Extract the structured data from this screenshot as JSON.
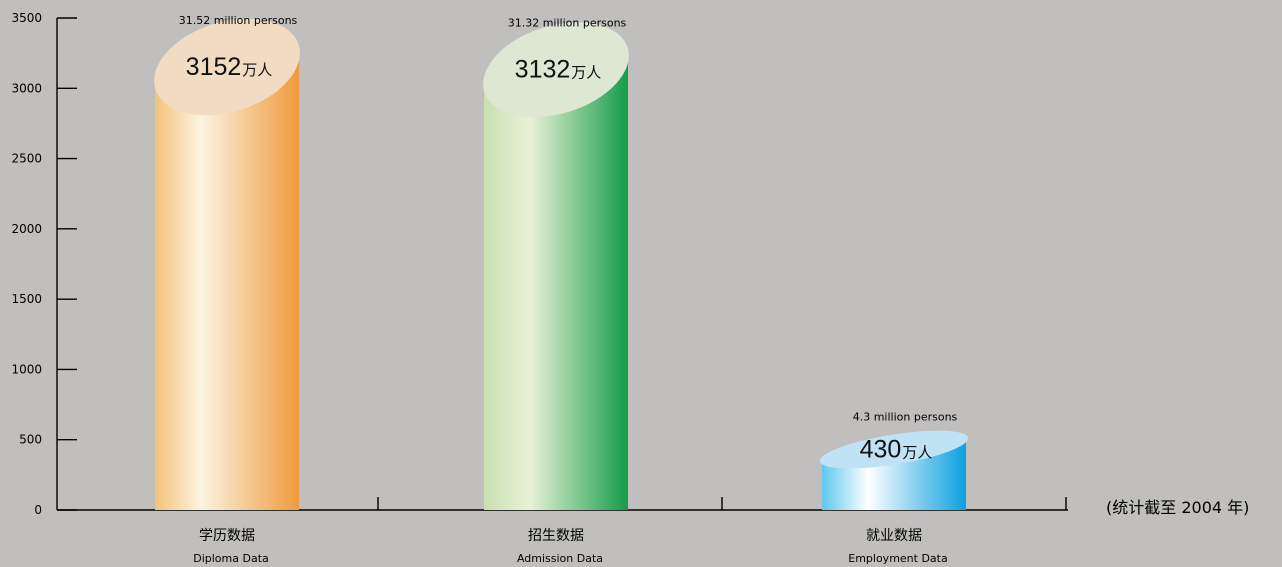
{
  "chart_data": {
    "type": "bar",
    "categories": [
      "学历数据",
      "招生数据",
      "就业数据"
    ],
    "category_subtitles": [
      "Diploma Data",
      "Admission Data",
      "Employment Data"
    ],
    "values": [
      3152,
      3132,
      430
    ],
    "value_labels": [
      {
        "number": "3152",
        "unit": "万人"
      },
      {
        "number": "3132",
        "unit": "万人"
      },
      {
        "number": "430",
        "unit": "万人"
      }
    ],
    "annotations": [
      "31.52 million persons",
      "31.32 million persons",
      "4.3 million persons"
    ],
    "ylim": [
      0,
      3500
    ],
    "y_ticks": [
      "0",
      "500",
      "1000",
      "1500",
      "2000",
      "2500",
      "3000",
      "3500"
    ],
    "grid": false,
    "bar_colors": [
      {
        "edge": "#f3c27a",
        "highlight": "#fbf4e2",
        "side": "#ef9a3c",
        "top": "#f1dcc3"
      },
      {
        "edge": "#c8e0b0",
        "highlight": "#e8f1d7",
        "side": "#149c48",
        "top": "#dde7d2"
      },
      {
        "edge": "#5fc7ee",
        "highlight": "#ffffff",
        "side": "#0aa0e0",
        "top": "#bfe3f5"
      }
    ]
  },
  "footnote": "(统计截至 2004 年)"
}
